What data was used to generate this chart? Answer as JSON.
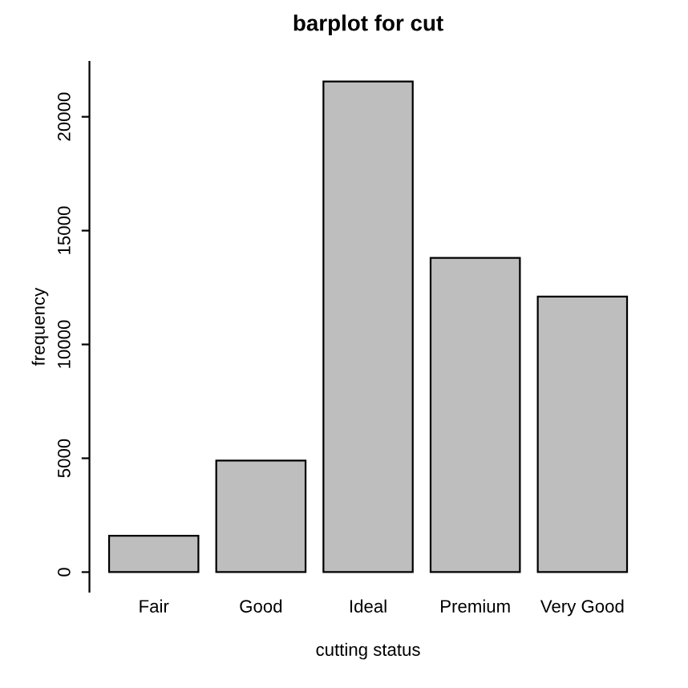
{
  "chart_data": {
    "type": "bar",
    "title": "barplot for cut",
    "xlabel": "cutting status",
    "ylabel": "frequency",
    "categories": [
      "Fair",
      "Good",
      "Ideal",
      "Premium",
      "Very Good"
    ],
    "values": [
      1600,
      4900,
      21550,
      13800,
      12100
    ],
    "color": "#bebebe",
    "ylim": [
      -860,
      22410
    ],
    "yticks": [
      0,
      5000,
      10000,
      15000,
      20000
    ],
    "grid": false,
    "legend": false
  }
}
